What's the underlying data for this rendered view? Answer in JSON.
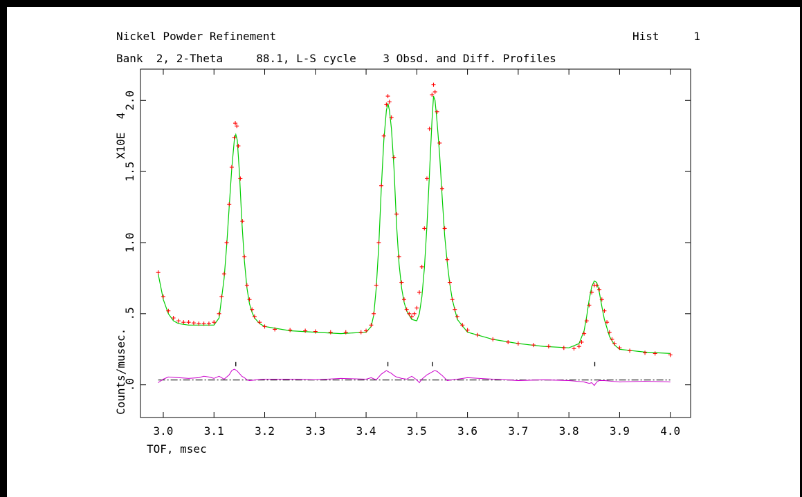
{
  "header": {
    "title": "Nickel Powder Refinement",
    "hist_label": "Hist",
    "hist_number": "1",
    "bank_line": "Bank  2, 2-Theta     88.1, L-S cycle    3 Obsd. and Diff. Profiles"
  },
  "colors": {
    "observed": "#ff0000",
    "calculated": "#00cc00",
    "difference": "#cc00cc",
    "reflection_ticks": "#000000",
    "axis": "#000000",
    "zero_line": "#000000"
  },
  "chart_data": {
    "type": "line",
    "title": "Nickel Powder Refinement",
    "xlabel": "TOF, msec",
    "ylabel": "Counts/musec.",
    "y_multiplier": "X10E  4",
    "xlim": [
      2.955,
      4.04
    ],
    "ylim": [
      -0.23,
      2.22
    ],
    "x_ticks": [
      3.0,
      3.1,
      3.2,
      3.3,
      3.4,
      3.5,
      3.6,
      3.7,
      3.8,
      3.9,
      4.0
    ],
    "x_tick_labels": [
      "3.0",
      "3.1",
      "3.2",
      "3.3",
      "3.4",
      "3.5",
      "3.6",
      "3.7",
      "3.8",
      "3.9",
      "4.0"
    ],
    "y_ticks": [
      0.0,
      0.5,
      1.0,
      1.5,
      2.0
    ],
    "y_tick_labels": [
      ".0",
      ".5",
      "1.0",
      "1.5",
      "2.0"
    ],
    "reflection_positions": [
      3.143,
      3.443,
      3.531,
      3.851
    ],
    "zero_line_y": 0.034,
    "series": [
      {
        "role": "observed",
        "marker": "+",
        "x": [
          2.99,
          3.0,
          3.01,
          3.02,
          3.03,
          3.04,
          3.05,
          3.06,
          3.07,
          3.08,
          3.09,
          3.1,
          3.11,
          3.115,
          3.12,
          3.125,
          3.13,
          3.135,
          3.14,
          3.142,
          3.145,
          3.148,
          3.152,
          3.156,
          3.16,
          3.165,
          3.17,
          3.175,
          3.18,
          3.19,
          3.2,
          3.22,
          3.25,
          3.28,
          3.3,
          3.33,
          3.36,
          3.39,
          3.4,
          3.41,
          3.415,
          3.42,
          3.425,
          3.43,
          3.435,
          3.44,
          3.443,
          3.446,
          3.45,
          3.455,
          3.46,
          3.465,
          3.47,
          3.475,
          3.48,
          3.485,
          3.49,
          3.495,
          3.5,
          3.505,
          3.51,
          3.515,
          3.52,
          3.525,
          3.53,
          3.533,
          3.536,
          3.54,
          3.545,
          3.55,
          3.555,
          3.56,
          3.565,
          3.57,
          3.575,
          3.58,
          3.59,
          3.6,
          3.62,
          3.65,
          3.68,
          3.7,
          3.73,
          3.76,
          3.79,
          3.81,
          3.82,
          3.825,
          3.83,
          3.835,
          3.84,
          3.845,
          3.85,
          3.855,
          3.86,
          3.865,
          3.87,
          3.875,
          3.88,
          3.885,
          3.89,
          3.9,
          3.92,
          3.95,
          3.97,
          4.0
        ],
        "y": [
          0.79,
          0.62,
          0.52,
          0.47,
          0.45,
          0.44,
          0.44,
          0.435,
          0.43,
          0.43,
          0.43,
          0.44,
          0.5,
          0.62,
          0.78,
          1.0,
          1.27,
          1.53,
          1.74,
          1.84,
          1.82,
          1.68,
          1.45,
          1.15,
          0.9,
          0.7,
          0.6,
          0.53,
          0.48,
          0.44,
          0.41,
          0.39,
          0.385,
          0.38,
          0.375,
          0.37,
          0.37,
          0.37,
          0.38,
          0.42,
          0.5,
          0.7,
          1.0,
          1.4,
          1.75,
          1.97,
          2.03,
          1.99,
          1.88,
          1.6,
          1.2,
          0.9,
          0.72,
          0.6,
          0.53,
          0.5,
          0.48,
          0.5,
          0.54,
          0.65,
          0.83,
          1.1,
          1.45,
          1.8,
          2.04,
          2.11,
          2.06,
          1.92,
          1.7,
          1.38,
          1.1,
          0.88,
          0.72,
          0.6,
          0.53,
          0.48,
          0.42,
          0.385,
          0.35,
          0.32,
          0.3,
          0.29,
          0.28,
          0.27,
          0.26,
          0.255,
          0.27,
          0.3,
          0.36,
          0.45,
          0.56,
          0.65,
          0.7,
          0.7,
          0.67,
          0.6,
          0.52,
          0.44,
          0.37,
          0.32,
          0.29,
          0.26,
          0.24,
          0.225,
          0.22,
          0.21
        ]
      },
      {
        "role": "calculated",
        "x": [
          2.99,
          3.0,
          3.01,
          3.02,
          3.03,
          3.05,
          3.07,
          3.1,
          3.11,
          3.12,
          3.125,
          3.13,
          3.135,
          3.14,
          3.143,
          3.146,
          3.15,
          3.155,
          3.16,
          3.165,
          3.17,
          3.175,
          3.18,
          3.19,
          3.2,
          3.25,
          3.3,
          3.35,
          3.4,
          3.41,
          3.415,
          3.42,
          3.425,
          3.43,
          3.435,
          3.44,
          3.443,
          3.446,
          3.45,
          3.455,
          3.46,
          3.465,
          3.47,
          3.475,
          3.48,
          3.49,
          3.5,
          3.505,
          3.51,
          3.515,
          3.52,
          3.525,
          3.53,
          3.533,
          3.536,
          3.54,
          3.545,
          3.55,
          3.555,
          3.56,
          3.565,
          3.57,
          3.58,
          3.6,
          3.65,
          3.7,
          3.75,
          3.8,
          3.82,
          3.83,
          3.835,
          3.84,
          3.845,
          3.85,
          3.855,
          3.86,
          3.865,
          3.87,
          3.88,
          3.89,
          3.9,
          3.95,
          4.0
        ],
        "y": [
          0.78,
          0.6,
          0.5,
          0.45,
          0.43,
          0.42,
          0.42,
          0.42,
          0.47,
          0.75,
          0.98,
          1.25,
          1.52,
          1.72,
          1.76,
          1.72,
          1.5,
          1.15,
          0.87,
          0.68,
          0.57,
          0.51,
          0.47,
          0.43,
          0.41,
          0.38,
          0.37,
          0.36,
          0.37,
          0.41,
          0.49,
          0.68,
          0.98,
          1.38,
          1.72,
          1.93,
          1.98,
          1.93,
          1.8,
          1.52,
          1.13,
          0.85,
          0.68,
          0.58,
          0.52,
          0.46,
          0.45,
          0.5,
          0.62,
          0.82,
          1.12,
          1.48,
          1.86,
          2.03,
          2.0,
          1.85,
          1.62,
          1.32,
          1.05,
          0.86,
          0.71,
          0.6,
          0.46,
          0.37,
          0.32,
          0.29,
          0.27,
          0.26,
          0.29,
          0.38,
          0.48,
          0.6,
          0.69,
          0.73,
          0.72,
          0.65,
          0.55,
          0.46,
          0.34,
          0.28,
          0.25,
          0.23,
          0.22
        ]
      },
      {
        "role": "difference",
        "x": [
          2.99,
          3.0,
          3.01,
          3.03,
          3.05,
          3.07,
          3.08,
          3.09,
          3.1,
          3.11,
          3.12,
          3.13,
          3.135,
          3.14,
          3.145,
          3.15,
          3.155,
          3.16,
          3.165,
          3.17,
          3.2,
          3.25,
          3.3,
          3.35,
          3.4,
          3.41,
          3.42,
          3.43,
          3.44,
          3.445,
          3.45,
          3.455,
          3.46,
          3.47,
          3.48,
          3.49,
          3.5,
          3.505,
          3.51,
          3.52,
          3.53,
          3.535,
          3.54,
          3.545,
          3.55,
          3.56,
          3.58,
          3.6,
          3.65,
          3.7,
          3.75,
          3.8,
          3.83,
          3.84,
          3.845,
          3.85,
          3.855,
          3.86,
          3.87,
          3.9,
          3.95,
          4.0
        ],
        "y": [
          0.015,
          0.04,
          0.055,
          0.05,
          0.045,
          0.05,
          0.06,
          0.055,
          0.045,
          0.06,
          0.04,
          0.07,
          0.1,
          0.11,
          0.1,
          0.08,
          0.06,
          0.05,
          0.035,
          0.03,
          0.04,
          0.04,
          0.035,
          0.045,
          0.04,
          0.05,
          0.035,
          0.075,
          0.1,
          0.09,
          0.08,
          0.065,
          0.055,
          0.045,
          0.04,
          0.06,
          0.035,
          0.015,
          0.04,
          0.07,
          0.09,
          0.1,
          0.095,
          0.08,
          0.065,
          0.03,
          0.04,
          0.05,
          0.04,
          0.03,
          0.035,
          0.03,
          0.02,
          0.01,
          0.015,
          -0.005,
          0.02,
          0.03,
          0.03,
          0.02,
          0.025,
          0.02
        ]
      }
    ]
  }
}
